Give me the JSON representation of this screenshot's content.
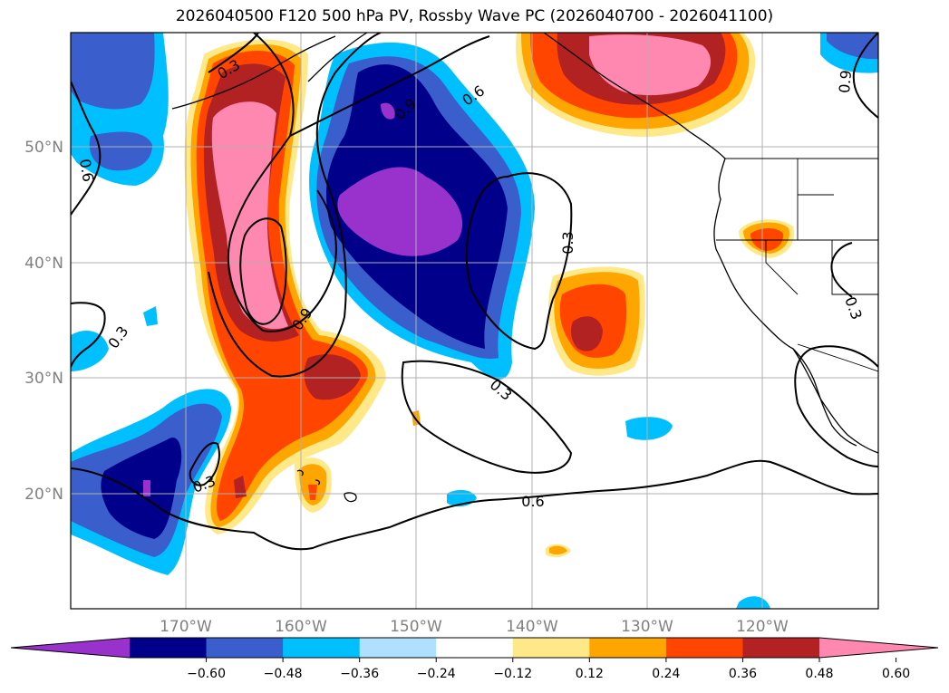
{
  "title": "2026040500 F120 500 hPa PV, Rossby Wave PC (2026040700 - 2026041100)",
  "map": {
    "lat_ticks": [
      "50°N",
      "40°N",
      "30°N",
      "20°N"
    ],
    "lon_ticks": [
      "170°W",
      "160°W",
      "150°W",
      "140°W",
      "130°W",
      "120°W"
    ],
    "contour_labels": [
      "0.3",
      "0.9",
      "0.6",
      "0.6",
      "0.9",
      "0.3",
      "0.3",
      "0.9",
      "0.3",
      "0.6",
      "0.3",
      "0.3"
    ],
    "colors": {
      "ocean": "#ffffff",
      "coast": "#000000",
      "contour": "#000000",
      "grid": "#b0b0b0"
    }
  },
  "colorbar": {
    "ticks": [
      "−0.60",
      "−0.48",
      "−0.36",
      "−0.24",
      "−0.12",
      "0.12",
      "0.24",
      "0.36",
      "0.48",
      "0.60"
    ],
    "colors": [
      "#9932cc",
      "#00008b",
      "#3a5fcd",
      "#00bfff",
      "#b0e0ff",
      "#ffffff",
      "#ffe888",
      "#ffa500",
      "#ff4500",
      "#b22222",
      "#ff88b0"
    ]
  }
}
